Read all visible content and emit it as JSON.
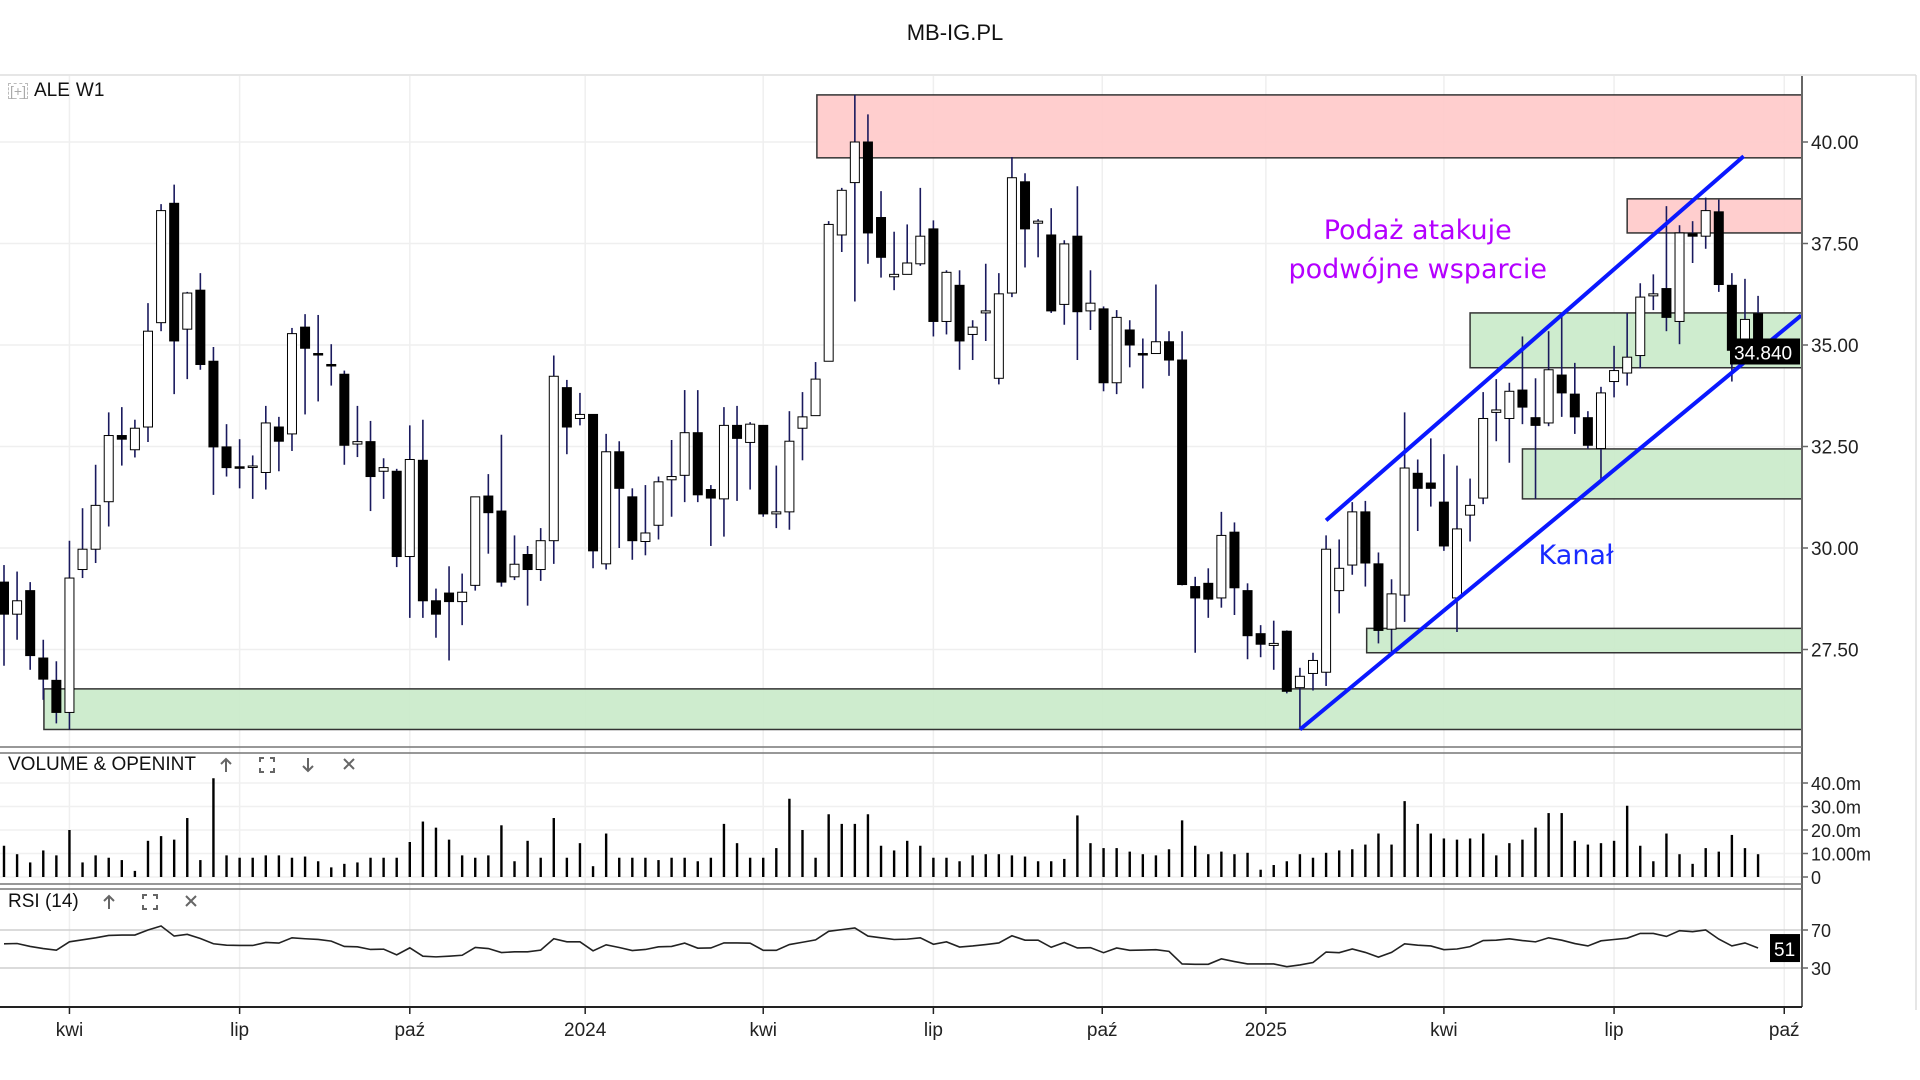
{
  "title": "MB-IG.PL",
  "legend": {
    "expand_icon": "[+]",
    "symbol": "ALE",
    "timeframe": "W1"
  },
  "panels": {
    "volume": {
      "label": "VOLUME & OPENINT",
      "icons": [
        "arrow-up-icon",
        "maximize-icon",
        "arrow-down-icon",
        "close-icon"
      ]
    },
    "rsi": {
      "label": "RSI (14)",
      "icons": [
        "arrow-up-icon",
        "maximize-icon",
        "close-icon"
      ]
    }
  },
  "colors": {
    "bull_body": "#ffffff",
    "bear_body": "#000000",
    "wick": "#1a1a5e",
    "resistance_zone": "#ffc9c9",
    "support_zone": "#c9eac9",
    "channel": "#0a18ff",
    "annotation_purple": "#b400ff",
    "annotation_blue": "#1a2bff"
  },
  "chart_data": {
    "type": "candlestick",
    "title": "ALE W1",
    "price_axis": {
      "ticks": [
        "40.00",
        "37.50",
        "35.00",
        "32.50",
        "30.00",
        "27.50"
      ],
      "tick_values": [
        40,
        37.5,
        35,
        32.5,
        30,
        27.5
      ],
      "range": [
        25.1,
        41.6
      ]
    },
    "last_price_label": "34.840",
    "x_axis": {
      "labels": [
        "kwi",
        "lip",
        "paź",
        "2024",
        "kwi",
        "lip",
        "paź",
        "2025",
        "kwi",
        "lip",
        "paź"
      ],
      "label_index": [
        5,
        18,
        31,
        44.4,
        58,
        71,
        83.9,
        96.4,
        110,
        123,
        136
      ],
      "range": [
        -0.3,
        137.4
      ]
    },
    "candles_format": "[open, high, low, close]",
    "candles": [
      [
        29.16,
        29.58,
        27.1,
        28.37
      ],
      [
        28.37,
        29.42,
        27.74,
        28.7
      ],
      [
        28.95,
        29.16,
        27.0,
        27.35
      ],
      [
        27.29,
        27.74,
        26.26,
        26.77
      ],
      [
        26.74,
        27.21,
        25.68,
        25.95
      ],
      [
        25.95,
        30.18,
        25.53,
        29.26
      ],
      [
        29.47,
        30.98,
        29.26,
        29.97
      ],
      [
        29.97,
        32.05,
        29.63,
        31.05
      ],
      [
        31.14,
        33.34,
        30.53,
        32.77
      ],
      [
        32.77,
        33.47,
        32.03,
        32.68
      ],
      [
        32.42,
        33.16,
        32.23,
        32.95
      ],
      [
        32.98,
        36.03,
        32.61,
        35.34
      ],
      [
        35.55,
        38.47,
        35.34,
        38.31
      ],
      [
        38.49,
        38.95,
        33.79,
        35.1
      ],
      [
        35.39,
        36.31,
        34.16,
        36.28
      ],
      [
        36.35,
        36.77,
        34.39,
        34.52
      ],
      [
        34.6,
        34.95,
        31.31,
        32.49
      ],
      [
        32.49,
        33.05,
        31.76,
        31.98
      ],
      [
        32.0,
        32.68,
        31.47,
        31.97
      ],
      [
        32.0,
        32.28,
        31.21,
        32.02
      ],
      [
        31.86,
        33.5,
        31.44,
        33.08
      ],
      [
        32.98,
        33.23,
        31.89,
        32.63
      ],
      [
        32.81,
        35.42,
        32.39,
        35.28
      ],
      [
        35.44,
        35.76,
        33.29,
        34.92
      ],
      [
        34.79,
        35.74,
        33.61,
        34.77
      ],
      [
        34.52,
        35.02,
        34.0,
        34.5
      ],
      [
        34.28,
        34.37,
        32.05,
        32.53
      ],
      [
        32.56,
        33.5,
        32.24,
        32.62
      ],
      [
        32.62,
        33.13,
        30.91,
        31.76
      ],
      [
        31.89,
        32.21,
        31.21,
        31.98
      ],
      [
        31.89,
        31.95,
        29.53,
        29.79
      ],
      [
        29.79,
        33.02,
        28.28,
        32.18
      ],
      [
        32.16,
        33.16,
        28.28,
        28.7
      ],
      [
        28.7,
        29.0,
        27.79,
        28.37
      ],
      [
        28.89,
        29.55,
        27.23,
        28.68
      ],
      [
        28.68,
        29.37,
        28.1,
        28.91
      ],
      [
        29.08,
        31.26,
        28.95,
        31.26
      ],
      [
        31.28,
        31.82,
        29.86,
        30.87
      ],
      [
        30.91,
        32.79,
        29.05,
        29.16
      ],
      [
        29.29,
        30.31,
        29.21,
        29.6
      ],
      [
        29.84,
        30.05,
        28.58,
        29.47
      ],
      [
        29.47,
        30.49,
        29.19,
        30.18
      ],
      [
        30.18,
        34.74,
        29.61,
        34.23
      ],
      [
        33.95,
        34.14,
        32.31,
        32.98
      ],
      [
        33.19,
        33.82,
        33.02,
        33.29
      ],
      [
        33.29,
        33.29,
        29.5,
        29.93
      ],
      [
        29.61,
        32.81,
        29.47,
        32.37
      ],
      [
        32.37,
        32.63,
        30.0,
        31.47
      ],
      [
        31.26,
        31.47,
        29.71,
        30.18
      ],
      [
        30.16,
        31.55,
        29.82,
        30.37
      ],
      [
        30.56,
        31.76,
        30.21,
        31.63
      ],
      [
        31.68,
        32.66,
        30.77,
        31.76
      ],
      [
        31.79,
        33.89,
        31.13,
        32.84
      ],
      [
        32.84,
        33.89,
        31.13,
        31.31
      ],
      [
        31.44,
        31.55,
        30.05,
        31.23
      ],
      [
        31.21,
        33.47,
        30.28,
        33.02
      ],
      [
        33.02,
        33.5,
        31.16,
        32.7
      ],
      [
        32.6,
        33.1,
        31.44,
        33.05
      ],
      [
        33.02,
        33.02,
        30.77,
        30.84
      ],
      [
        30.84,
        32.03,
        30.49,
        30.89
      ],
      [
        30.89,
        33.37,
        30.45,
        32.63
      ],
      [
        32.95,
        33.84,
        32.16,
        33.23
      ],
      [
        33.26,
        34.58,
        33.26,
        34.16
      ],
      [
        34.6,
        38.05,
        34.6,
        37.97
      ],
      [
        37.71,
        38.87,
        37.29,
        38.81
      ],
      [
        39.0,
        41.16,
        36.07,
        40.0
      ],
      [
        40.0,
        40.68,
        37.0,
        37.76
      ],
      [
        38.14,
        38.79,
        36.66,
        37.16
      ],
      [
        36.68,
        37.79,
        36.35,
        36.74
      ],
      [
        36.74,
        37.97,
        36.74,
        37.02
      ],
      [
        37.0,
        38.87,
        36.95,
        37.68
      ],
      [
        37.86,
        38.07,
        35.21,
        35.58
      ],
      [
        35.58,
        36.84,
        35.26,
        36.79
      ],
      [
        36.47,
        36.84,
        34.39,
        35.1
      ],
      [
        35.26,
        35.61,
        34.63,
        35.44
      ],
      [
        35.79,
        37.0,
        35.1,
        35.84
      ],
      [
        34.18,
        36.77,
        34.03,
        36.26
      ],
      [
        36.28,
        39.63,
        36.18,
        39.12
      ],
      [
        39.02,
        39.23,
        36.91,
        37.86
      ],
      [
        38.0,
        38.1,
        37.16,
        38.05
      ],
      [
        37.71,
        38.37,
        35.79,
        35.84
      ],
      [
        36.0,
        37.58,
        35.5,
        37.49
      ],
      [
        37.68,
        38.91,
        34.63,
        35.82
      ],
      [
        35.84,
        36.84,
        35.37,
        36.03
      ],
      [
        35.89,
        35.95,
        33.86,
        34.07
      ],
      [
        34.07,
        35.86,
        33.79,
        35.68
      ],
      [
        35.37,
        35.61,
        34.45,
        35.0
      ],
      [
        34.79,
        35.16,
        33.93,
        34.77
      ],
      [
        34.79,
        36.49,
        34.79,
        35.08
      ],
      [
        35.08,
        35.34,
        34.24,
        34.63
      ],
      [
        34.63,
        35.34,
        29.08,
        29.1
      ],
      [
        29.05,
        29.29,
        27.42,
        28.77
      ],
      [
        29.13,
        29.5,
        28.28,
        28.74
      ],
      [
        28.77,
        30.89,
        28.53,
        30.31
      ],
      [
        30.39,
        30.63,
        28.35,
        29.02
      ],
      [
        28.95,
        29.13,
        27.26,
        27.84
      ],
      [
        27.89,
        28.1,
        27.31,
        27.63
      ],
      [
        27.6,
        28.21,
        27.0,
        27.65
      ],
      [
        27.95,
        27.97,
        26.42,
        26.47
      ],
      [
        26.56,
        27.05,
        25.58,
        26.84
      ],
      [
        26.91,
        27.42,
        26.49,
        27.23
      ],
      [
        26.94,
        30.31,
        26.6,
        29.97
      ],
      [
        28.95,
        30.21,
        28.39,
        29.5
      ],
      [
        29.58,
        31.13,
        29.34,
        30.89
      ],
      [
        30.89,
        31.16,
        29.05,
        29.63
      ],
      [
        29.61,
        29.89,
        27.65,
        27.97
      ],
      [
        28.0,
        29.23,
        27.42,
        28.87
      ],
      [
        28.84,
        33.34,
        28.18,
        31.97
      ],
      [
        31.84,
        32.18,
        30.42,
        31.47
      ],
      [
        31.6,
        32.7,
        31.02,
        31.47
      ],
      [
        31.13,
        32.31,
        29.93,
        30.05
      ],
      [
        28.77,
        32.03,
        27.93,
        30.47
      ],
      [
        30.81,
        31.71,
        30.16,
        31.05
      ],
      [
        31.23,
        33.84,
        31.08,
        33.19
      ],
      [
        33.34,
        34.16,
        32.63,
        33.4
      ],
      [
        33.19,
        34.07,
        32.1,
        33.86
      ],
      [
        33.89,
        35.21,
        33.05,
        33.47
      ],
      [
        33.21,
        34.18,
        31.21,
        33.02
      ],
      [
        33.08,
        35.34,
        33.0,
        34.39
      ],
      [
        34.26,
        35.79,
        33.23,
        33.82
      ],
      [
        33.79,
        34.56,
        32.81,
        33.23
      ],
      [
        33.21,
        33.37,
        32.45,
        32.53
      ],
      [
        32.45,
        33.97,
        31.68,
        33.82
      ],
      [
        34.1,
        34.98,
        33.71,
        34.37
      ],
      [
        34.31,
        35.79,
        34.0,
        34.7
      ],
      [
        34.74,
        36.52,
        34.42,
        36.18
      ],
      [
        36.21,
        36.74,
        35.86,
        36.26
      ],
      [
        36.39,
        38.42,
        35.34,
        35.68
      ],
      [
        35.58,
        37.95,
        35.02,
        37.76
      ],
      [
        37.74,
        38.05,
        37.02,
        37.68
      ],
      [
        37.68,
        38.63,
        37.37,
        38.31
      ],
      [
        38.28,
        38.58,
        36.31,
        36.49
      ],
      [
        36.47,
        36.77,
        34.1,
        34.87
      ],
      [
        34.95,
        36.63,
        34.89,
        35.63
      ],
      [
        35.77,
        36.21,
        34.68,
        34.84
      ]
    ],
    "zones": [
      {
        "kind": "resistance",
        "from_index": 62.1,
        "top": 41.16,
        "bottom": 39.61
      },
      {
        "kind": "resistance",
        "from_index": 124.0,
        "top": 38.6,
        "bottom": 37.76
      },
      {
        "kind": "support",
        "from_index": 112.0,
        "top": 35.79,
        "bottom": 34.44
      },
      {
        "kind": "support",
        "from_index": 116.0,
        "top": 32.44,
        "bottom": 31.21
      },
      {
        "kind": "support",
        "from_index": 104.1,
        "top": 28.02,
        "bottom": 27.42
      },
      {
        "kind": "support",
        "from_index": 3.05,
        "top": 26.53,
        "bottom": 25.53
      }
    ],
    "channel_lines": [
      {
        "name": "upper",
        "from": [
          101.0,
          30.68
        ],
        "to": [
          132.9,
          39.65
        ]
      },
      {
        "name": "lower",
        "from": [
          99.0,
          25.53
        ],
        "to": [
          137.3,
          35.73
        ]
      }
    ],
    "annotations": [
      {
        "text": "Podaż atakuje",
        "index": 108.0,
        "price": 37.83,
        "color": "#b400ff"
      },
      {
        "text": "podwójne wsparcie",
        "index": 108.0,
        "price": 36.87,
        "color": "#b400ff"
      },
      {
        "text": "Kanał",
        "index": 120.1,
        "price": 29.83,
        "color": "#1a2bff"
      }
    ],
    "volume": {
      "unit": "m",
      "ticks": [
        "40.0m",
        "30.0m",
        "20.0m",
        "10.00m",
        "0"
      ],
      "tick_values": [
        40,
        30,
        20,
        10,
        0
      ],
      "values": [
        13.3,
        9.7,
        6.2,
        11.3,
        9.2,
        20,
        6.2,
        9.2,
        8.2,
        7.2,
        2.6,
        15.4,
        17.4,
        15.9,
        25.1,
        7.2,
        42,
        9.2,
        8.2,
        8.2,
        9.2,
        9.2,
        8.2,
        8.7,
        6.7,
        4.1,
        5.6,
        6.2,
        8.2,
        8.2,
        8.2,
        14.9,
        23.6,
        21,
        15.9,
        9.2,
        8.2,
        9.2,
        22,
        6.7,
        15.4,
        8.2,
        25.1,
        8.2,
        14.4,
        4.6,
        18.5,
        8.2,
        8.2,
        8.2,
        7.2,
        8.2,
        8.2,
        6.7,
        8.2,
        22.6,
        14.4,
        8.2,
        8.2,
        12.3,
        33.3,
        20,
        8.2,
        26.7,
        22.6,
        22.6,
        26.7,
        13.3,
        11.3,
        15.4,
        13.3,
        8.2,
        8.2,
        6.7,
        9.2,
        9.7,
        9.7,
        9.2,
        8.7,
        6.7,
        6.7,
        7.7,
        26.2,
        14.4,
        12.3,
        12.3,
        10.8,
        9.7,
        9.2,
        11.8,
        24.1,
        13.3,
        9.7,
        10.8,
        9.7,
        10.3,
        3.1,
        5.1,
        6.7,
        9.7,
        8.2,
        10.3,
        11.3,
        11.8,
        13.8,
        18.5,
        13.8,
        32.3,
        22.6,
        18.5,
        16.4,
        15.9,
        16.4,
        18.5,
        9.2,
        14.4,
        15.9,
        21,
        27.2,
        27.2,
        15.4,
        13.8,
        14.4,
        15.4,
        30.3,
        13.3,
        6.7,
        18.5,
        9.7,
        5.6,
        12.3,
        10.8,
        17.9,
        12.3,
        9.7
      ]
    },
    "rsi": {
      "period": 14,
      "levels": [
        70,
        30
      ],
      "level_labels": [
        "70",
        "30"
      ],
      "last_label": "51",
      "values": [
        55.5,
        55.8,
        52.7,
        50.5,
        48.8,
        57.6,
        59.7,
        61.8,
        64.3,
        64.7,
        64.7,
        70.0,
        74.2,
        63.6,
        65.4,
        61.1,
        55.5,
        54.0,
        53.7,
        53.7,
        56.9,
        56.2,
        61.8,
        60.8,
        60.1,
        58.3,
        52.7,
        52.3,
        49.5,
        49.8,
        43.8,
        51.2,
        42.4,
        41.7,
        42.4,
        43.4,
        51.6,
        50.5,
        46.3,
        47.0,
        47.0,
        48.8,
        60.8,
        57.6,
        57.6,
        48.1,
        54.4,
        51.6,
        48.4,
        49.5,
        52.3,
        52.7,
        56.2,
        50.9,
        51.1,
        56.4,
        56.4,
        56.1,
        48.6,
        48.6,
        54.7,
        57.1,
        59.6,
        68.6,
        70.4,
        72.1,
        63.6,
        61.8,
        60.0,
        60.4,
        61.8,
        55.0,
        57.5,
        52.1,
        53.2,
        54.7,
        56.4,
        63.9,
        59.3,
        59.3,
        51.8,
        56.8,
        51.1,
        51.4,
        46.1,
        51.1,
        48.6,
        48.9,
        49.3,
        47.5,
        34.3,
        33.9,
        33.9,
        39.6,
        36.8,
        34.3,
        34.3,
        34.3,
        31.4,
        33.2,
        35.8,
        46.8,
        46.1,
        50.0,
        46.4,
        41.4,
        46.4,
        55.4,
        54.0,
        53.2,
        49.3,
        50.0,
        52.5,
        58.9,
        59.3,
        60.7,
        58.9,
        57.5,
        61.8,
        59.3,
        55.7,
        53.2,
        58.6,
        60.0,
        61.4,
        66.4,
        66.4,
        63.2,
        69.3,
        68.2,
        70.0,
        60.4,
        53.2,
        56.4,
        51.0
      ]
    }
  }
}
